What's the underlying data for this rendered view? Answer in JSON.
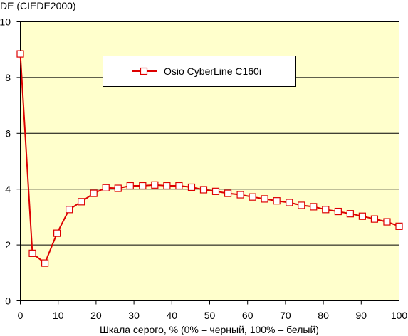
{
  "chart_data": {
    "type": "line",
    "xlabel": "Шкала серого, % (0% – черный, 100% – белый)",
    "ylabel": "DE (CIEDE2000)",
    "xlim": [
      0,
      100
    ],
    "ylim": [
      0,
      10
    ],
    "xticks": [
      "0",
      "10",
      "20",
      "30",
      "40",
      "50",
      "60",
      "70",
      "80",
      "90",
      "100"
    ],
    "yticks": [
      "0",
      "2",
      "4",
      "6",
      "8",
      "10"
    ],
    "grid": "horizontal",
    "legend_position": "top-center",
    "series": [
      {
        "name": "Osio CyberLine C160i",
        "color": "#dd0000",
        "marker": "hollow-square",
        "x": [
          0,
          3.2,
          6.5,
          9.7,
          12.9,
          16.1,
          19.4,
          22.6,
          25.8,
          29.0,
          32.3,
          35.5,
          38.7,
          41.9,
          45.2,
          48.4,
          51.6,
          54.8,
          58.1,
          61.3,
          64.5,
          67.7,
          71.0,
          74.2,
          77.4,
          80.6,
          83.9,
          87.1,
          90.3,
          93.5,
          96.8,
          100
        ],
        "y": [
          8.85,
          1.7,
          1.35,
          2.42,
          3.27,
          3.55,
          3.85,
          4.05,
          4.03,
          4.12,
          4.12,
          4.15,
          4.12,
          4.12,
          4.07,
          3.98,
          3.92,
          3.85,
          3.8,
          3.72,
          3.65,
          3.58,
          3.52,
          3.42,
          3.37,
          3.27,
          3.2,
          3.12,
          3.03,
          2.93,
          2.83,
          2.67
        ]
      }
    ]
  }
}
